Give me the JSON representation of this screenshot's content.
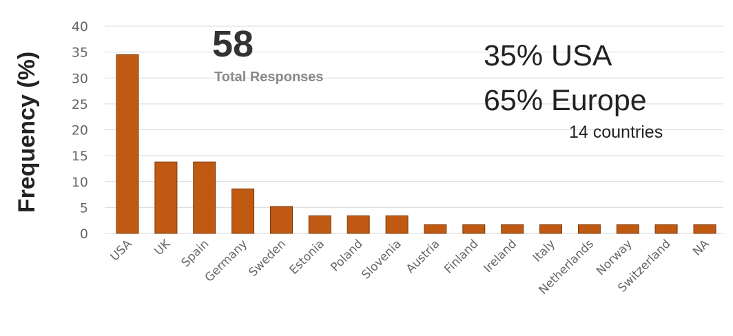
{
  "chart_data": {
    "type": "bar",
    "ylabel": "Frequency (%)",
    "xlabel": "",
    "ylim": [
      0,
      40
    ],
    "yticks": [
      0,
      5,
      10,
      15,
      20,
      25,
      30,
      35,
      40
    ],
    "grid": true,
    "categories": [
      "USA",
      "UK",
      "Spain",
      "Germany",
      "Sweden",
      "Estonia",
      "Poland",
      "Slovenia",
      "Austria",
      "Finland",
      "Ireland",
      "Italy",
      "Netherlands",
      "Norway",
      "Switzerland",
      "NA"
    ],
    "values": [
      34.5,
      13.8,
      13.8,
      8.6,
      5.2,
      3.4,
      3.4,
      3.4,
      1.7,
      1.7,
      1.7,
      1.7,
      1.7,
      1.7,
      1.7,
      1.7
    ],
    "bar_color": "#c05a12",
    "annotations": {
      "total_value": "58",
      "total_label": "Total Responses",
      "usa_share": "35% USA",
      "europe_share": "65% Europe",
      "countries": "14 countries"
    }
  }
}
